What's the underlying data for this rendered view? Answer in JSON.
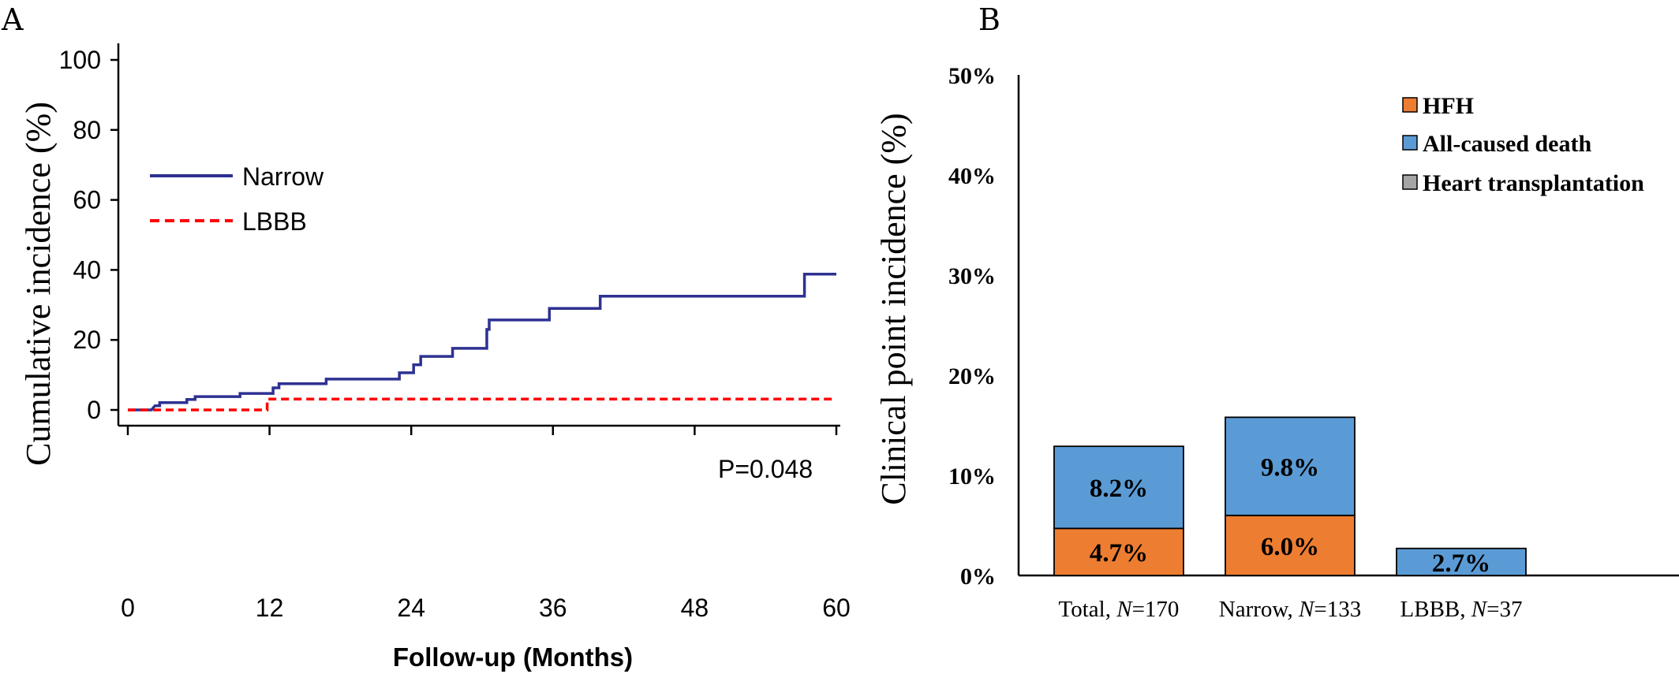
{
  "chart_data": [
    {
      "panel": "A",
      "type": "line",
      "title": "",
      "xlabel": "Follow-up (Months)",
      "ylabel": "Cumulative incidence (%)",
      "xlim": [
        0,
        60
      ],
      "ylim": [
        0,
        100
      ],
      "xticks": [
        "0",
        "12",
        "24",
        "36",
        "48",
        "60"
      ],
      "yticks": [
        "0",
        "20",
        "40",
        "60",
        "80",
        "100"
      ],
      "grid": false,
      "legend_position": "top-left",
      "annotation": "P=0.048",
      "series": [
        {
          "name": "Narrow",
          "color": "#2e3192",
          "style": "solid-step",
          "points": [
            [
              0,
              0
            ],
            [
              2,
              0
            ],
            [
              2.3,
              1.2
            ],
            [
              2.7,
              1.2
            ],
            [
              2.7,
              2.1
            ],
            [
              5,
              2.1
            ],
            [
              5,
              3.0
            ],
            [
              5.7,
              3.0
            ],
            [
              5.7,
              3.8
            ],
            [
              9.5,
              3.8
            ],
            [
              9.5,
              4.7
            ],
            [
              12.3,
              4.7
            ],
            [
              12.3,
              6.3
            ],
            [
              12.8,
              6.3
            ],
            [
              12.8,
              7.5
            ],
            [
              16.8,
              7.5
            ],
            [
              16.8,
              8.8
            ],
            [
              23,
              8.8
            ],
            [
              23,
              10.6
            ],
            [
              24.2,
              10.6
            ],
            [
              24.2,
              12.9
            ],
            [
              24.8,
              12.9
            ],
            [
              24.8,
              15.3
            ],
            [
              27.5,
              15.3
            ],
            [
              27.5,
              17.6
            ],
            [
              30.4,
              17.6
            ],
            [
              30.4,
              23.0
            ],
            [
              30.6,
              23.0
            ],
            [
              30.6,
              25.7
            ],
            [
              35.7,
              25.7
            ],
            [
              35.7,
              29.0
            ],
            [
              40,
              29.0
            ],
            [
              40,
              32.5
            ],
            [
              57.3,
              32.5
            ],
            [
              57.3,
              38.8
            ],
            [
              60,
              38.8
            ]
          ]
        },
        {
          "name": "LBBB",
          "color": "#ff0000",
          "style": "dashed-step",
          "points": [
            [
              0,
              0
            ],
            [
              11.8,
              0
            ],
            [
              11.8,
              3.1
            ],
            [
              60,
              3.1
            ]
          ]
        }
      ]
    },
    {
      "panel": "B",
      "type": "bar",
      "stacked": true,
      "title": "",
      "xlabel": "",
      "ylabel": "Clinical point incidence (%)",
      "ylim": [
        0,
        50
      ],
      "yticks": [
        "0%",
        "10%",
        "20%",
        "30%",
        "40%",
        "50%"
      ],
      "grid": false,
      "legend_position": "top-right",
      "categories": [
        {
          "prefix": "Total, ",
          "n_symbol": "N",
          "suffix": "=170"
        },
        {
          "prefix": "Narrow, ",
          "n_symbol": "N",
          "suffix": "=133"
        },
        {
          "prefix": "LBBB, ",
          "n_symbol": "N",
          "suffix": "=37"
        }
      ],
      "series": [
        {
          "name": "HFH",
          "color": "#ed7d31",
          "values": [
            4.7,
            6.0,
            0
          ],
          "labels": [
            "4.7%",
            "6.0%",
            ""
          ]
        },
        {
          "name": "All-caused death",
          "color": "#5b9bd5",
          "values": [
            8.2,
            9.8,
            2.7
          ],
          "labels": [
            "8.2%",
            "9.8%",
            "2.7%"
          ]
        },
        {
          "name": "Heart transplantation",
          "color": "#a5a5a5",
          "values": [
            0,
            0,
            0
          ],
          "labels": [
            "",
            "",
            ""
          ]
        }
      ]
    }
  ]
}
